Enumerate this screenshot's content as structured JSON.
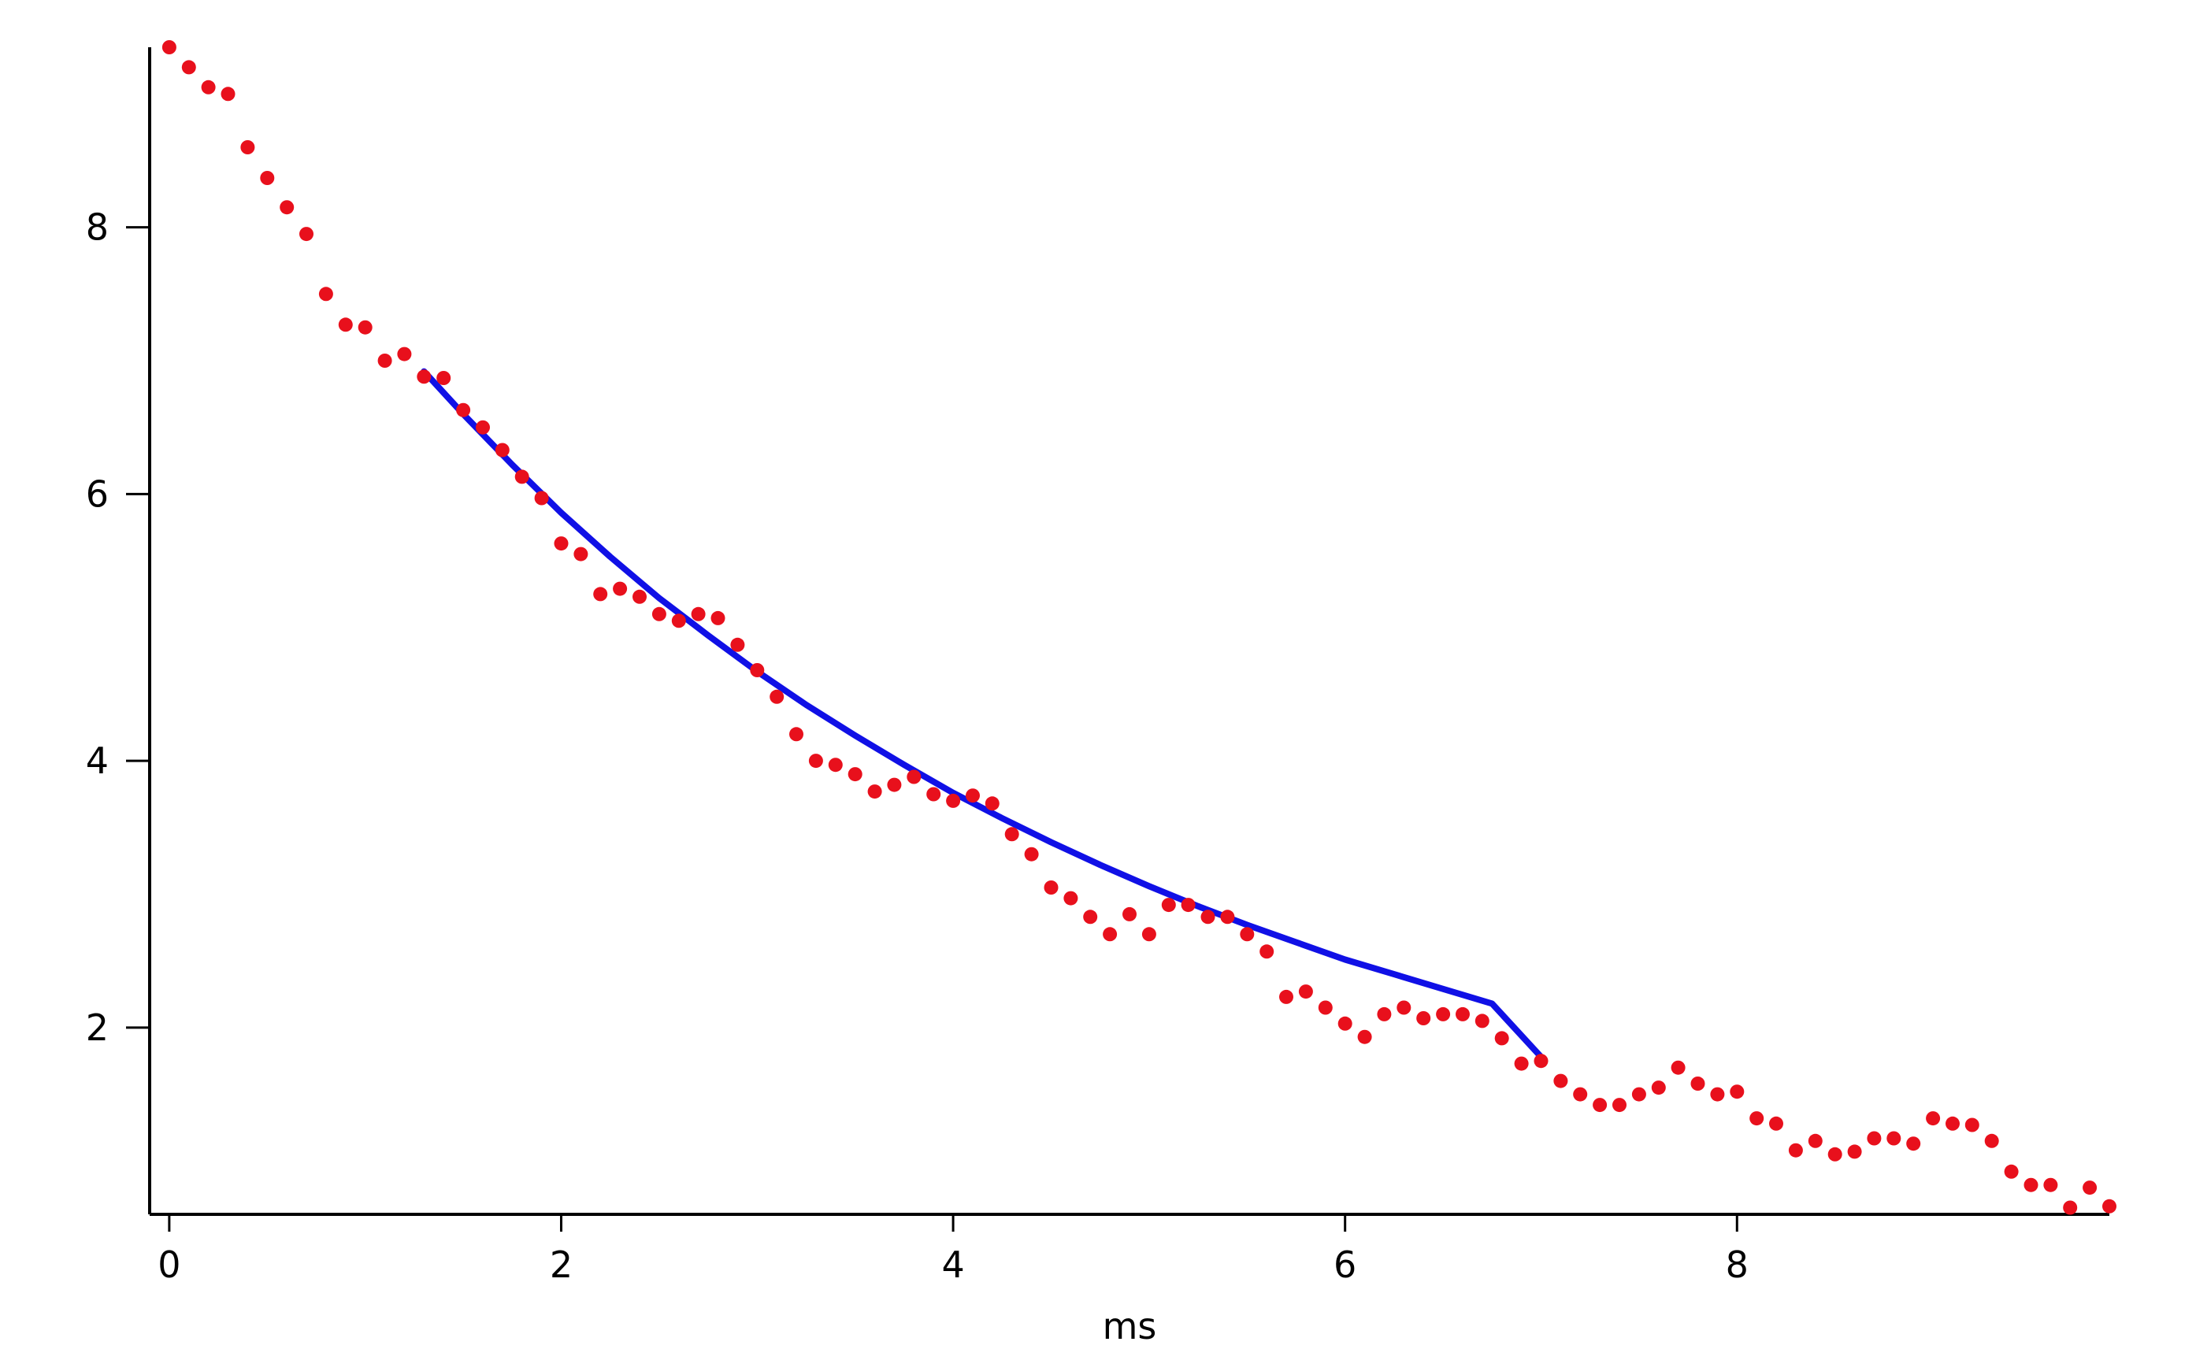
{
  "chart_data": {
    "type": "scatter",
    "title": "",
    "xlabel": "ms",
    "ylabel": "",
    "xlim": [
      -0.1,
      9.9
    ],
    "ylim": [
      0.6,
      9.35
    ],
    "grid": false,
    "legend": "none",
    "x_ticks": [
      0,
      2,
      4,
      6,
      8
    ],
    "y_ticks": [
      2,
      4,
      6,
      8
    ],
    "x_tick_labels": [
      "0",
      "2",
      "4",
      "6",
      "8"
    ],
    "y_tick_labels": [
      "2",
      "4",
      "6",
      "8"
    ],
    "colors": {
      "points": "#e8101c",
      "fit": "#1010e6",
      "axis": "#000000"
    },
    "series": [
      {
        "type": "scatter",
        "x": [
          0.0,
          0.1,
          0.2,
          0.3,
          0.4,
          0.5,
          0.6,
          0.7,
          0.8,
          0.9,
          1.0,
          1.1,
          1.2,
          1.3,
          1.4,
          1.5,
          1.6,
          1.7,
          1.8,
          1.9,
          2.0,
          2.1,
          2.2,
          2.3,
          2.4,
          2.5,
          2.6,
          2.7,
          2.8,
          2.9,
          3.0,
          3.1,
          3.2,
          3.3,
          3.4,
          3.5,
          3.6,
          3.7,
          3.8,
          3.9,
          4.0,
          4.1,
          4.2,
          4.3,
          4.4,
          4.5,
          4.6,
          4.7,
          4.8,
          4.9,
          5.0,
          5.1,
          5.2,
          5.3,
          5.4,
          5.5,
          5.6,
          5.7,
          5.8,
          5.9,
          6.0,
          6.1,
          6.2,
          6.3,
          6.4,
          6.5,
          6.6,
          6.7,
          6.8,
          6.9,
          7.0,
          7.1,
          7.2,
          7.3,
          7.4,
          7.5,
          7.6,
          7.7,
          7.8,
          7.9,
          8.0,
          8.1,
          8.2,
          8.3,
          8.4,
          8.5,
          8.6,
          8.7,
          8.8,
          8.9,
          9.0,
          9.1,
          9.2,
          9.3,
          9.4,
          9.5,
          9.6,
          9.7,
          9.8,
          9.9
        ],
        "y": [
          9.35,
          9.2,
          9.05,
          9.0,
          8.6,
          8.37,
          8.15,
          7.95,
          7.5,
          7.27,
          7.25,
          7.0,
          7.05,
          6.88,
          6.87,
          6.63,
          6.5,
          6.33,
          6.13,
          5.97,
          5.63,
          5.55,
          5.25,
          5.29,
          5.23,
          5.1,
          5.05,
          5.1,
          5.07,
          4.87,
          4.68,
          4.48,
          4.2,
          4.0,
          3.97,
          3.9,
          3.77,
          3.82,
          3.88,
          3.75,
          3.7,
          3.74,
          3.68,
          3.45,
          3.3,
          3.05,
          2.97,
          2.83,
          2.7,
          2.85,
          2.7,
          2.92,
          2.92,
          2.83,
          2.83,
          2.7,
          2.57,
          2.23,
          2.27,
          2.15,
          2.03,
          1.93,
          2.1,
          2.15,
          2.07,
          2.1,
          2.1,
          2.05,
          1.92,
          1.73,
          1.75,
          1.6,
          1.5,
          1.42,
          1.42,
          1.5,
          1.55,
          1.7,
          1.58,
          1.5,
          1.52,
          1.32,
          1.28,
          1.08,
          1.15,
          1.05,
          1.07,
          1.17,
          1.17,
          1.13,
          1.32,
          1.28,
          1.27,
          1.15,
          0.92,
          0.82,
          0.82,
          0.65,
          0.8,
          0.66
        ]
      },
      {
        "type": "line",
        "x": [
          1.3,
          1.5,
          1.75,
          2.0,
          2.25,
          2.5,
          2.75,
          3.0,
          3.25,
          3.5,
          3.75,
          4.0,
          4.25,
          4.5,
          4.75,
          5.0,
          5.25,
          5.5,
          5.75,
          6.0,
          6.25,
          6.5,
          6.75,
          7.0
        ],
        "y": [
          6.92,
          6.6,
          6.22,
          5.86,
          5.53,
          5.22,
          4.94,
          4.67,
          4.42,
          4.19,
          3.97,
          3.76,
          3.57,
          3.39,
          3.22,
          3.06,
          2.91,
          2.77,
          2.64,
          2.51,
          2.4,
          2.29,
          2.18,
          1.78
        ]
      }
    ]
  }
}
